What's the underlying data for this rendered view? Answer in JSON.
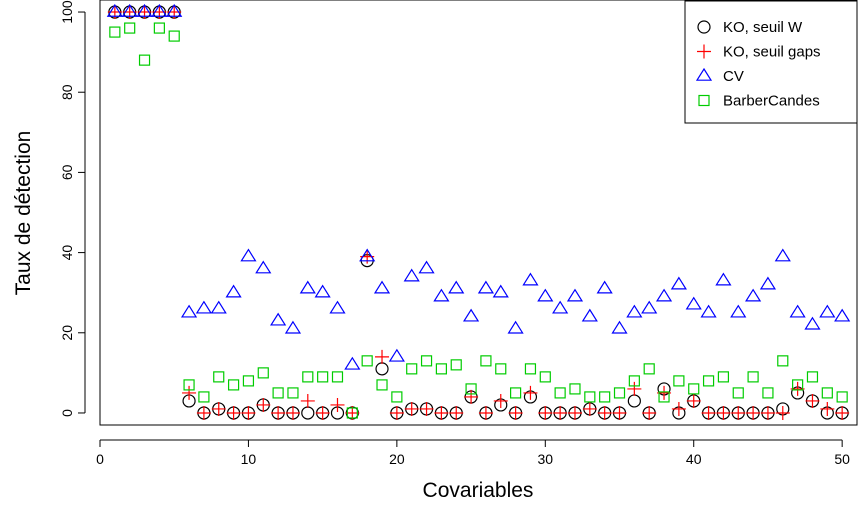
{
  "chart_data": {
    "type": "scatter",
    "title": "",
    "xlabel": "Covariables",
    "ylabel": "Taux de détection",
    "xlim": [
      0,
      51
    ],
    "ylim": [
      -3,
      103
    ],
    "xticks": [
      0,
      10,
      20,
      30,
      40,
      50
    ],
    "yticks": [
      0,
      20,
      40,
      60,
      80,
      100
    ],
    "xtick_labels": [
      "0",
      "10",
      "20",
      "30",
      "40",
      "50"
    ],
    "ytick_labels": [
      "0",
      "20",
      "40",
      "60",
      "80",
      "100"
    ],
    "grid": false,
    "legend_position": "top-right",
    "x": [
      1,
      2,
      3,
      4,
      5,
      6,
      7,
      8,
      9,
      10,
      11,
      12,
      13,
      14,
      15,
      16,
      17,
      18,
      19,
      20,
      21,
      22,
      23,
      24,
      25,
      26,
      27,
      28,
      29,
      30,
      31,
      32,
      33,
      34,
      35,
      36,
      37,
      38,
      39,
      40,
      41,
      42,
      43,
      44,
      45,
      46,
      47,
      48,
      49,
      50
    ],
    "series": [
      {
        "name": "KO, seuil W",
        "marker": "circle",
        "color": "#000000",
        "values": [
          100,
          100,
          100,
          100,
          100,
          3,
          0,
          1,
          0,
          0,
          2,
          0,
          0,
          0,
          0,
          0,
          0,
          38,
          11,
          0,
          1,
          1,
          0,
          0,
          4,
          0,
          2,
          0,
          4,
          0,
          0,
          0,
          1,
          0,
          0,
          3,
          0,
          6,
          0,
          3,
          0,
          0,
          0,
          0,
          0,
          1,
          5,
          3,
          0,
          0
        ]
      },
      {
        "name": "KO, seuil gaps",
        "marker": "plus",
        "color": "#ff0000",
        "values": [
          100,
          100,
          100,
          100,
          100,
          5,
          0,
          1,
          0,
          0,
          2,
          0,
          0,
          3,
          0,
          2,
          0,
          39,
          14,
          0,
          1,
          1,
          0,
          0,
          4,
          0,
          3,
          0,
          5,
          0,
          0,
          0,
          1,
          0,
          0,
          6,
          0,
          5,
          1,
          3,
          0,
          0,
          0,
          0,
          0,
          0,
          6,
          3,
          1,
          0
        ]
      },
      {
        "name": "CV",
        "marker": "triangle",
        "color": "#0000ff",
        "values": [
          100,
          100,
          100,
          100,
          100,
          25,
          26,
          26,
          30,
          39,
          36,
          23,
          21,
          31,
          30,
          26,
          12,
          39,
          31,
          14,
          34,
          36,
          29,
          31,
          24,
          31,
          30,
          21,
          33,
          29,
          26,
          29,
          24,
          31,
          21,
          25,
          26,
          29,
          32,
          27,
          25,
          33,
          25,
          29,
          32,
          39,
          25,
          22,
          25,
          24
        ]
      },
      {
        "name": "BarberCandes",
        "marker": "square",
        "color": "#00cc00",
        "values": [
          95,
          96,
          88,
          96,
          94,
          7,
          4,
          9,
          7,
          8,
          10,
          5,
          5,
          9,
          9,
          9,
          0,
          13,
          7,
          4,
          11,
          13,
          11,
          12,
          6,
          13,
          11,
          5,
          11,
          9,
          5,
          6,
          4,
          4,
          5,
          8,
          11,
          4,
          8,
          6,
          8,
          9,
          5,
          9,
          5,
          13,
          7,
          9,
          5,
          4
        ]
      }
    ]
  }
}
